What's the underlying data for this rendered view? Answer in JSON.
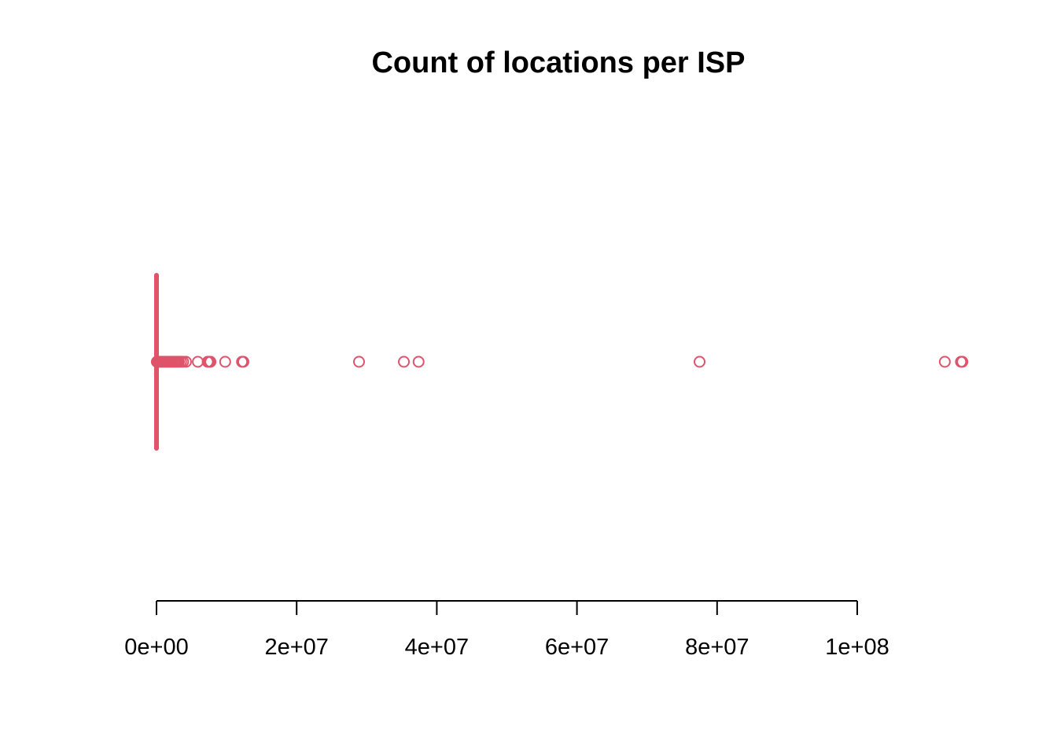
{
  "chart_data": {
    "type": "boxplot",
    "orientation": "horizontal",
    "title": "Count of locations per ISP",
    "xlabel": "",
    "ylabel": "",
    "xlim": [
      0,
      115000000
    ],
    "x_ticks": [
      0,
      20000000,
      40000000,
      60000000,
      80000000,
      100000000
    ],
    "x_tick_labels": [
      "0e+00",
      "2e+07",
      "4e+07",
      "6e+07",
      "8e+07",
      "1e+08"
    ],
    "grid": false,
    "legend": "none",
    "color": "#df536b",
    "box": {
      "min": 0,
      "q1": 0,
      "median": 0,
      "q3": 0,
      "max": 0
    },
    "outliers": [
      50000,
      100000,
      150000,
      200000,
      250000,
      300000,
      350000,
      400000,
      450000,
      500000,
      600000,
      700000,
      800000,
      900000,
      1000000,
      1100000,
      1200000,
      1300000,
      1400000,
      1500000,
      1600000,
      1700000,
      1800000,
      1900000,
      2000000,
      2100000,
      2200000,
      2400000,
      2600000,
      2800000,
      3000000,
      3200000,
      3500000,
      3800000,
      4200000,
      5900000,
      7300000,
      7500000,
      7700000,
      9800000,
      12200000,
      12400000,
      28900000,
      35300000,
      37400000,
      77500000,
      112500000,
      114800000,
      115000000
    ]
  }
}
